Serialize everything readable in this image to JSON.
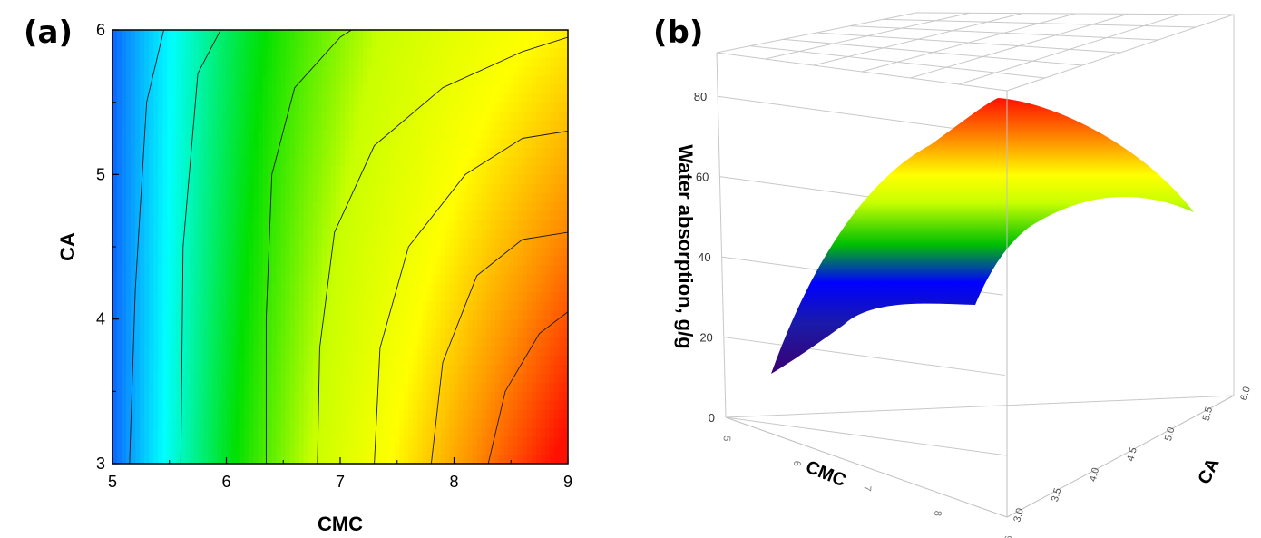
{
  "chart_data": [
    {
      "type": "heatmap",
      "subtype": "contour",
      "panel_label": "(a)",
      "title": "",
      "xlabel": "CMC",
      "ylabel": "CA",
      "xlim": [
        5,
        9
      ],
      "ylim": [
        3,
        6
      ],
      "xticks": [
        "5",
        "6",
        "7",
        "8",
        "9"
      ],
      "yticks": [
        "3",
        "4",
        "5",
        "6"
      ],
      "colorscale": [
        "#1040ff",
        "#00ffff",
        "#00e000",
        "#c8ff00",
        "#ffff00",
        "#ff9000",
        "#ff1000"
      ],
      "contour_lines": [
        {
          "points": [
            [
              5.15,
              3
            ],
            [
              5.2,
              4.2
            ],
            [
              5.3,
              5.5
            ],
            [
              5.45,
              6
            ]
          ]
        },
        {
          "points": [
            [
              5.6,
              3
            ],
            [
              5.62,
              4.5
            ],
            [
              5.75,
              5.7
            ],
            [
              5.95,
              6
            ]
          ]
        },
        {
          "points": [
            [
              6.35,
              3
            ],
            [
              6.35,
              4.0
            ],
            [
              6.4,
              5.0
            ],
            [
              6.6,
              5.6
            ],
            [
              7.0,
              5.95
            ],
            [
              7.1,
              6
            ]
          ]
        },
        {
          "points": [
            [
              6.8,
              3
            ],
            [
              6.82,
              3.8
            ],
            [
              6.95,
              4.6
            ],
            [
              7.3,
              5.2
            ],
            [
              7.9,
              5.6
            ],
            [
              8.6,
              5.85
            ],
            [
              9,
              5.95
            ]
          ]
        },
        {
          "points": [
            [
              7.3,
              3
            ],
            [
              7.35,
              3.8
            ],
            [
              7.6,
              4.5
            ],
            [
              8.1,
              5.0
            ],
            [
              8.6,
              5.25
            ],
            [
              9,
              5.3
            ]
          ]
        },
        {
          "points": [
            [
              7.8,
              3
            ],
            [
              7.9,
              3.7
            ],
            [
              8.2,
              4.3
            ],
            [
              8.6,
              4.55
            ],
            [
              9,
              4.6
            ]
          ]
        },
        {
          "points": [
            [
              8.3,
              3
            ],
            [
              8.45,
              3.5
            ],
            [
              8.75,
              3.9
            ],
            [
              9,
              4.05
            ]
          ]
        }
      ]
    },
    {
      "type": "surface",
      "panel_label": "(b)",
      "title": "",
      "xlabel": "CMC",
      "ylabel": "CA",
      "zlabel": "Water absorption, g/g",
      "xlim": [
        5,
        9
      ],
      "ylim": [
        3,
        6
      ],
      "zlim": [
        0,
        80
      ],
      "zticks": [
        "0",
        "20",
        "40",
        "60",
        "80"
      ],
      "yticks": [
        "3.0",
        "3.5",
        "4.0",
        "4.5",
        "5.0",
        "5.5",
        "6.0"
      ],
      "xticks": [
        "5",
        "6",
        "7",
        "8",
        "9"
      ],
      "surface_values": {
        "corner_cmc5_ca3": 10,
        "corner_cmc9_ca3": 30,
        "corner_cmc5_ca6": 55,
        "corner_cmc9_ca6": 52,
        "peak": 80
      },
      "colorscale": [
        "#4b0082",
        "#0000ff",
        "#00c800",
        "#ffff00",
        "#ff8000",
        "#ff0000"
      ]
    }
  ]
}
